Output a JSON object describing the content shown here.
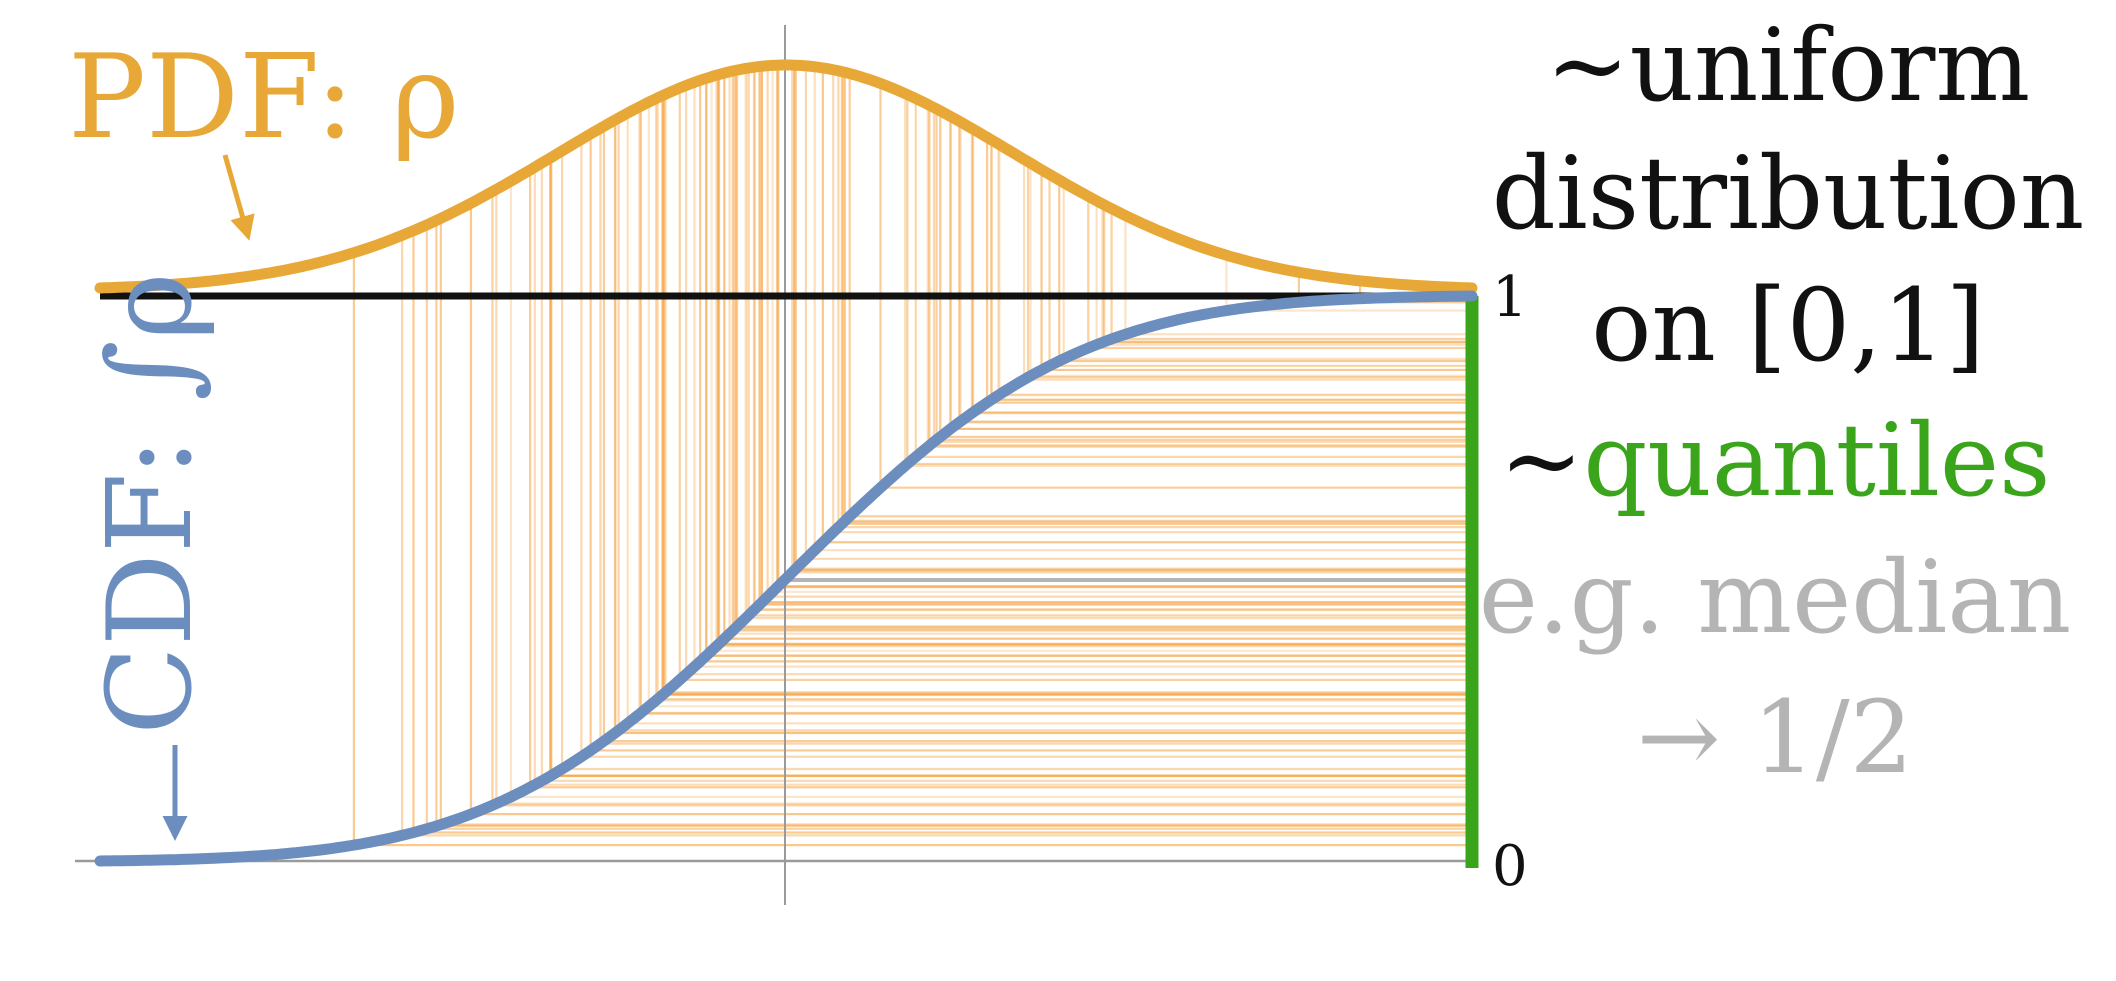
{
  "labels": {
    "pdf": "PDF: ρ",
    "cdf": "CDF: ∫ρ",
    "tilde": "~",
    "uniform_line1": "~uniform",
    "uniform_line2": "distribution",
    "uniform_line3": "on [0,1]",
    "quantiles_word": "quantiles",
    "median_line1": "e.g. median",
    "median_line2": "→ 1/2",
    "tick_one": "1",
    "tick_zero": "0"
  },
  "colors": {
    "pdf": "#e8a838",
    "cdf": "#6c8ebf",
    "sample_lines": "#f5a340",
    "quantiles": "#3aa51a",
    "median": "#b4b4b4",
    "axis": "#111111",
    "grid": "#9a9a9a"
  },
  "chart_data": {
    "type": "line",
    "distribution": "normal",
    "x_range": [
      -3,
      3
    ],
    "cdf_range": [
      0,
      1
    ],
    "series": [
      {
        "name": "PDF: ρ"
      },
      {
        "name": "CDF: ∫ρ"
      }
    ],
    "median_cdf": 0.5
  }
}
